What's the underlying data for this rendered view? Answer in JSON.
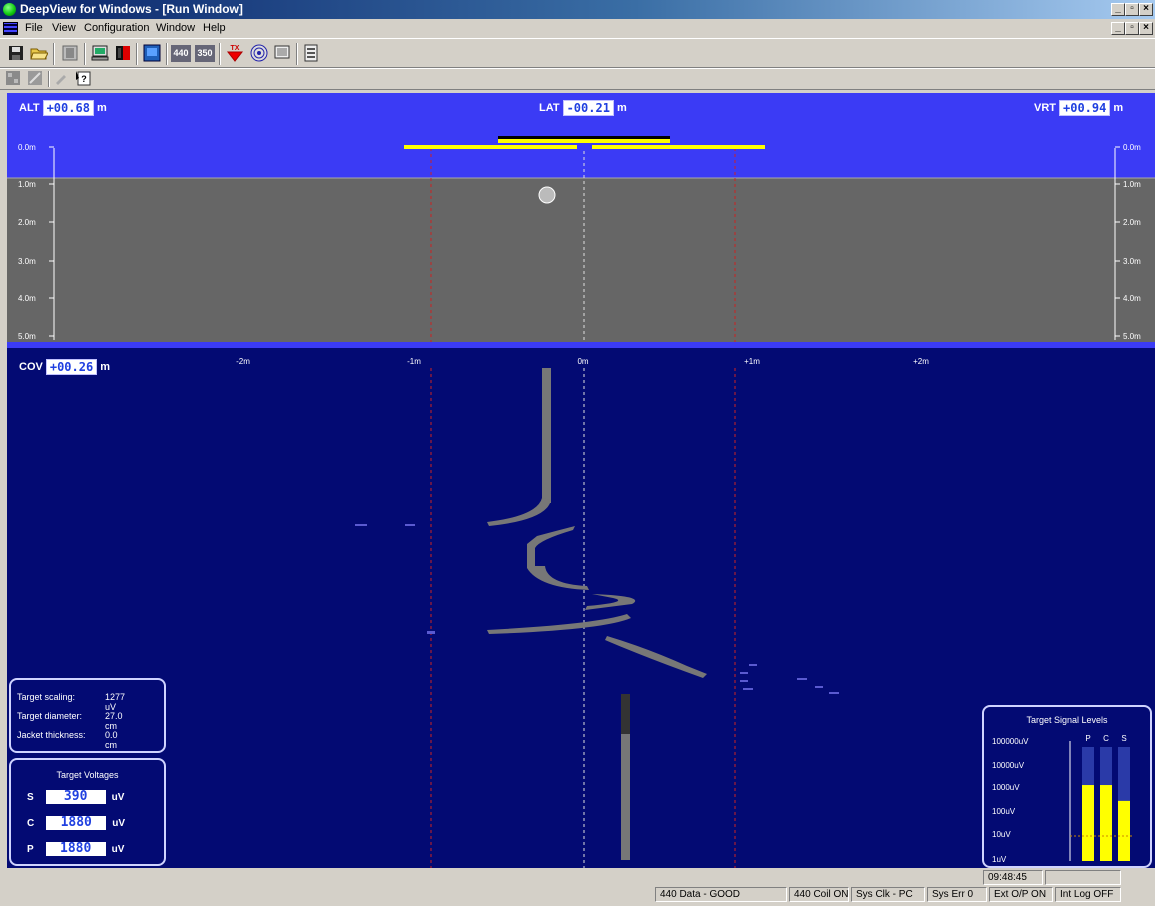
{
  "window": {
    "title": "DeepView for Windows - [Run Window]",
    "min": "_",
    "max": "▫",
    "close": "×"
  },
  "menu": [
    "File",
    "View",
    "Configuration",
    "Window",
    "Help"
  ],
  "toolbar": {
    "main": [
      "save-icon",
      "open-folder-icon",
      "panel-icon",
      "computer-icon",
      "red-black-icon",
      "blue-screen-icon",
      "440-icon",
      "350-icon",
      "tx-icon",
      "target-icon",
      "monitor-icon",
      "list-icon"
    ],
    "labels": {
      "t440": "440",
      "t350": "350",
      "tx": "TX"
    },
    "secondary": [
      "grid-icon",
      "grid-disabled-icon",
      "pen-icon",
      "help-cursor-icon"
    ]
  },
  "colors": {
    "upper_bg": "#3b3bf5",
    "lower_bg": "#030a73",
    "ground": "#666666",
    "coil": "#ffff00",
    "guide_red": "#cc2222",
    "bar_yellow": "#ffff00"
  },
  "readouts": {
    "alt": {
      "label": "ALT",
      "value": "+00.68",
      "unit": "m"
    },
    "lat": {
      "label": "LAT",
      "value": "-00.21",
      "unit": "m"
    },
    "vrt": {
      "label": "VRT",
      "value": "+00.94",
      "unit": "m"
    },
    "cov": {
      "label": "COV",
      "value": "+00.26",
      "unit": "m"
    }
  },
  "depth_scale": [
    "0.0m",
    "1.0m",
    "2.0m",
    "3.0m",
    "4.0m",
    "5.0m"
  ],
  "lateral_scale": [
    "-2m",
    "-1m",
    "0m",
    "+1m",
    "+2m"
  ],
  "target_info": {
    "rows": [
      {
        "label": "Target scaling:",
        "value": "1277 uV"
      },
      {
        "label": "Target diameter:",
        "value": "27.0 cm"
      },
      {
        "label": "Jacket thickness:",
        "value": "0.0 cm"
      }
    ]
  },
  "target_voltages": {
    "title": "Target Voltages",
    "rows": [
      {
        "label": "S",
        "value": "390",
        "unit": "uV"
      },
      {
        "label": "C",
        "value": "1880",
        "unit": "uV"
      },
      {
        "label": "P",
        "value": "1880",
        "unit": "uV"
      }
    ]
  },
  "signal_levels": {
    "title": "Target Signal Levels",
    "scale": [
      "100000uV",
      "10000uV",
      "1000uV",
      "100uV",
      "10uV",
      "1uV"
    ],
    "bars": [
      {
        "name": "P",
        "value_uV": 1880
      },
      {
        "name": "C",
        "value_uV": 1880
      },
      {
        "name": "S",
        "value_uV": 390
      }
    ]
  },
  "status": {
    "time": "09:48:45",
    "cells": [
      "440 Data - GOOD",
      "440 Coil ON",
      "Sys Clk - PC",
      "Sys Err  0",
      "Ext O/P ON",
      "Int Log OFF"
    ]
  }
}
